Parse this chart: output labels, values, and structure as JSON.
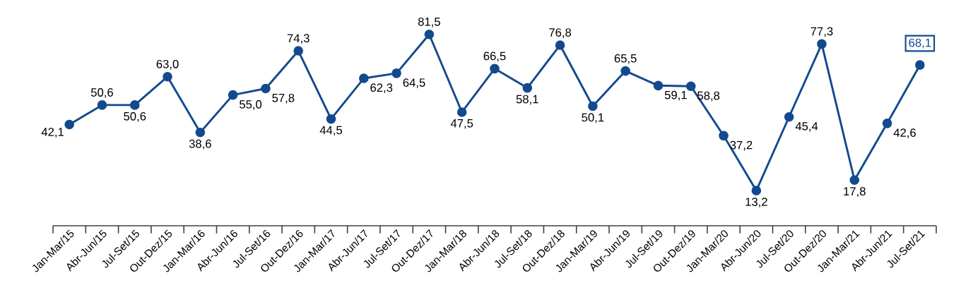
{
  "chart_data": {
    "type": "line",
    "categories": [
      "Jan-Mar/15",
      "Abr-Jun/15",
      "Jul-Set/15",
      "Out-Dez/15",
      "Jan-Mar/16",
      "Abr-Jun/16",
      "Jul-Set/16",
      "Out-Dez/16",
      "Jan-Mar/17",
      "Abr-Jun/17",
      "Jul-Set/17",
      "Out-Dez/17",
      "Jan-Mar/18",
      "Abr-Jun/18",
      "Jul-Set/18",
      "Out-Dez/18",
      "Jan-Mar/19",
      "Abr-Jun/19",
      "Jul-Set/19",
      "Out-Dez/19",
      "Jan-Mar/20",
      "Abr-Jun/20",
      "Jul-Set/20",
      "Out-Dez/20",
      "Jan-Mar/21",
      "Abr-Jun/21",
      "Jul-Set/21"
    ],
    "values": [
      42.1,
      50.6,
      50.6,
      63.0,
      38.6,
      55.0,
      57.8,
      74.3,
      44.5,
      62.3,
      64.5,
      81.5,
      47.5,
      66.5,
      58.1,
      76.8,
      50.1,
      65.5,
      59.1,
      58.8,
      37.2,
      13.2,
      45.4,
      77.3,
      17.8,
      42.6,
      68.1
    ],
    "value_labels": [
      "42,1",
      "50,6",
      "50,6",
      "63,0",
      "38,6",
      "55,0",
      "57,8",
      "74,3",
      "44,5",
      "62,3",
      "64,5",
      "81,5",
      "47,5",
      "66,5",
      "58,1",
      "76,8",
      "50,1",
      "65,5",
      "59,1",
      "58,8",
      "37,2",
      "13,2",
      "45,4",
      "77,3",
      "17,8",
      "42,6",
      "68,1"
    ],
    "color": "#134a8e",
    "marker": "circle",
    "line_style": "solid"
  }
}
